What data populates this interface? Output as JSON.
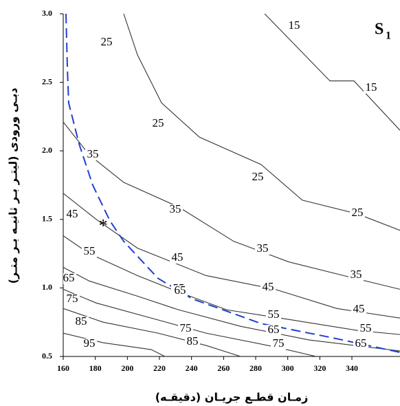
{
  "chart_data": {
    "type": "contour",
    "x_label": "زمـان قطـع جریـان (دقیقـه)",
    "y_label": "دبـی ورودی (لیتـر بـر ثانیـه بـر متـر)",
    "panel_label": {
      "text": "S",
      "subscript": "1"
    },
    "xlim": [
      160,
      370
    ],
    "ylim": [
      0.5,
      3.0
    ],
    "xticks": [
      160,
      180,
      200,
      220,
      240,
      260,
      280,
      300,
      320,
      340
    ],
    "yticks": [
      0.5,
      {
        "value": 1.0,
        "label": "1.0"
      },
      1.5,
      {
        "value": 2.0,
        "label": "2.0"
      },
      2.5,
      {
        "value": 3.0,
        "label": "3.0"
      }
    ],
    "line_color": "#333333",
    "contours": [
      {
        "level": 15,
        "x": [
          285.6,
          326.3,
          341.3,
          370
        ],
        "y": [
          3.0,
          2.51,
          2.51,
          2.15
        ]
      },
      {
        "level": 25,
        "x": [
          197.7,
          206.3,
          221.3,
          244.9,
          283.4,
          309.1,
          343.4,
          370
        ],
        "y": [
          3.0,
          2.7,
          2.35,
          2.1,
          1.9,
          1.64,
          1.54,
          1.42
        ]
      },
      {
        "level": 35,
        "x": [
          160,
          176.3,
          197.7,
          232,
          266.3,
          300.6,
          334.9,
          370
        ],
        "y": [
          2.21,
          1.97,
          1.77,
          1.59,
          1.34,
          1.19,
          1.09,
          0.99
        ]
      },
      {
        "level": 45,
        "x": [
          160,
          180.6,
          206.3,
          249.1,
          292,
          330.6,
          370
        ],
        "y": [
          1.69,
          1.5,
          1.29,
          1.09,
          0.99,
          0.85,
          0.78
        ]
      },
      {
        "level": 55,
        "x": [
          160,
          176.3,
          206.3,
          232,
          262,
          300.6,
          343.4,
          370
        ],
        "y": [
          1.38,
          1.25,
          1.09,
          0.97,
          0.84,
          0.77,
          0.69,
          0.66
        ]
      },
      {
        "level": 65,
        "x": [
          160,
          176.3,
          206.3,
          232,
          270.6,
          313.4,
          370
        ],
        "y": [
          1.15,
          1.05,
          0.94,
          0.84,
          0.72,
          0.62,
          0.54
        ]
      },
      {
        "level": 75,
        "x": [
          160,
          180.6,
          214.9,
          249.1,
          292,
          317.7
        ],
        "y": [
          0.99,
          0.89,
          0.78,
          0.67,
          0.57,
          0.5
        ]
      },
      {
        "level": 85,
        "x": [
          160,
          184.9,
          219.1,
          249.1,
          270.6
        ],
        "y": [
          0.85,
          0.75,
          0.67,
          0.58,
          0.5
        ]
      },
      {
        "level": 95,
        "x": [
          160,
          184.9,
          214.9,
          223.4
        ],
        "y": [
          0.67,
          0.6,
          0.55,
          0.5
        ]
      }
    ],
    "curve": {
      "color": "#1f3fd0",
      "x": [
        161.7,
        162.6,
        163.4,
        169.9,
        178.4,
        189.1,
        197.7,
        219.1,
        240.6,
        283.4,
        326.3,
        370
      ],
      "y": [
        3.0,
        2.6,
        2.35,
        2.05,
        1.75,
        1.49,
        1.34,
        1.07,
        0.92,
        0.74,
        0.64,
        0.53
      ]
    },
    "marker": {
      "symbol": "*",
      "x": 184.9,
      "y": 1.46
    }
  }
}
